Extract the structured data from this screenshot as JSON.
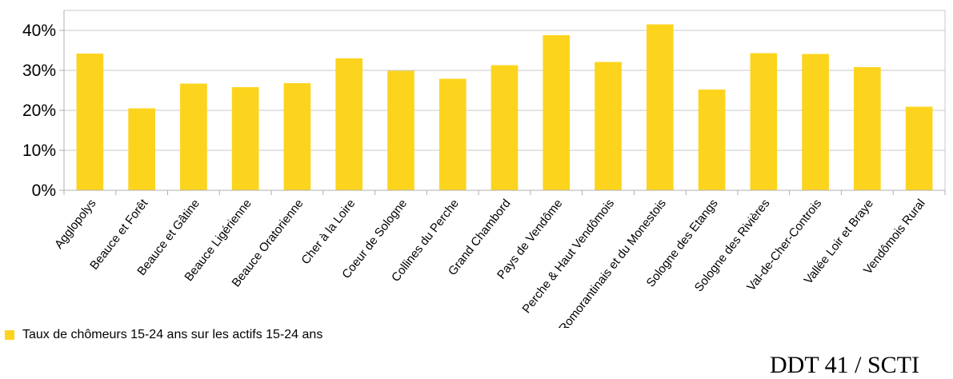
{
  "chart_data": {
    "type": "bar",
    "categories": [
      "Agglopolys",
      "Beauce et Forêt",
      "Beauce et Gâtine",
      "Beauce Ligérienne",
      "Beauce Oratorienne",
      "Cher à la Loire",
      "Coeur de Sologne",
      "Collines du Perche",
      "Grand Chambord",
      "Pays de Vendôme",
      "Perche & Haut Vendômois",
      "Romorantinais et du Monestois",
      "Sologne des Etangs",
      "Sologne des Rivières",
      "Val-de-Cher-Controis",
      "Vallée Loir et Braye",
      "Vendômois Rural"
    ],
    "series": [
      {
        "name": "Taux de chômeurs 15-24 ans sur les actifs 15-24 ans",
        "values": [
          34.2,
          20.5,
          26.7,
          25.8,
          26.8,
          33.0,
          29.9,
          27.9,
          31.3,
          38.8,
          32.1,
          41.5,
          25.2,
          34.3,
          34.1,
          30.8,
          20.9
        ]
      }
    ],
    "ylim": [
      0,
      45
    ],
    "yticks": [
      "0%",
      "10%",
      "20%",
      "30%",
      "40%"
    ],
    "ytick_values": [
      0,
      10,
      20,
      30,
      40
    ],
    "grid": true,
    "legend_position": "bottom-left",
    "bar_color": "#FDD41D"
  },
  "legend": {
    "label": "Taux de chômeurs 15-24 ans sur les actifs 15-24 ans",
    "color": "#FDD41D"
  },
  "footer": {
    "text": "DDT 41 / SCTI"
  }
}
